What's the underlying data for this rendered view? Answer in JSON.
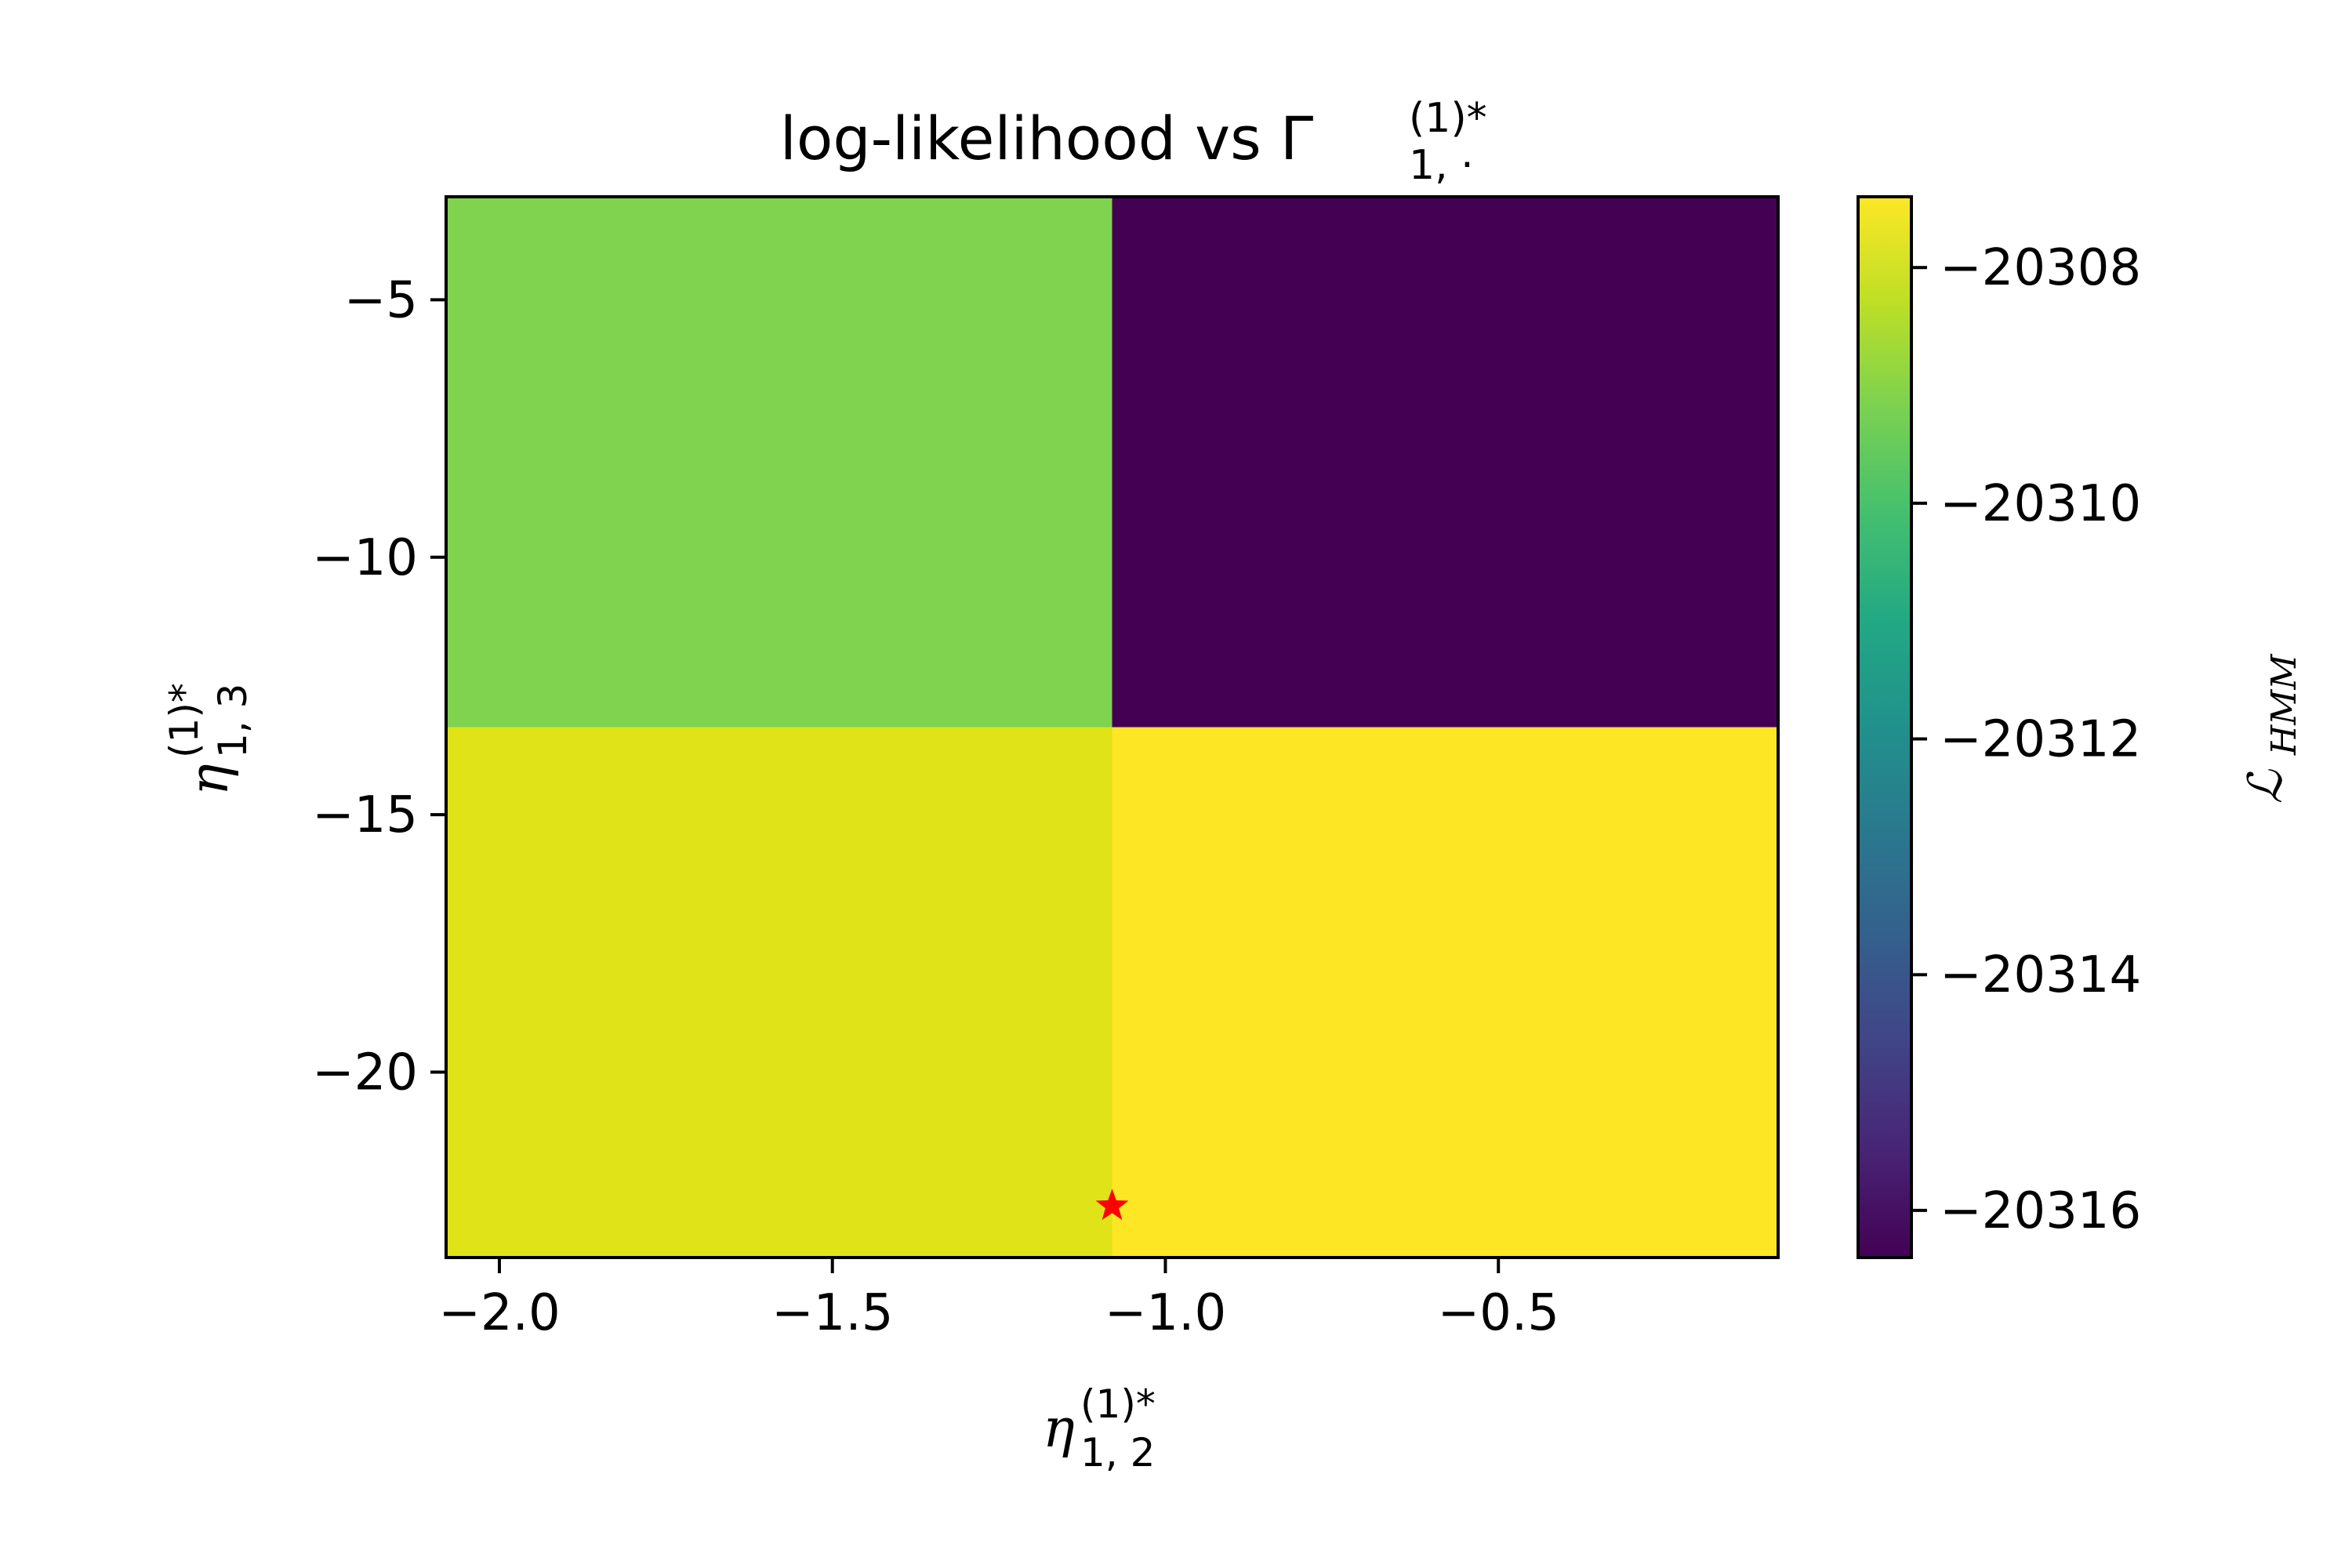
{
  "chart_data": {
    "type": "heatmap",
    "title": {
      "main": "log-likelihood vs Γ",
      "sup": "(1)*",
      "sub": "1, ·"
    },
    "xlabel": {
      "main": "η",
      "sup": "(1)*",
      "sub": "1, 2"
    },
    "ylabel": {
      "main": "η",
      "sup": "(1)*",
      "sub": "1, 3"
    },
    "colorbar_label": {
      "main": "ℒ",
      "sub": "HMM"
    },
    "x_edges": [
      -2.08,
      -1.08,
      -0.08
    ],
    "y_edges": [
      -23.6,
      -13.3,
      -3.0
    ],
    "xlim": [
      -2.08,
      -0.08
    ],
    "ylim": [
      -23.6,
      -3.0
    ],
    "x_ticks": [
      -2.0,
      -1.5,
      -1.0,
      -0.5
    ],
    "x_tick_labels": [
      "−2.0",
      "−1.5",
      "−1.0",
      "−0.5"
    ],
    "y_ticks": [
      -5,
      -10,
      -15,
      -20
    ],
    "y_tick_labels": [
      "−5",
      "−10",
      "−15",
      "−20"
    ],
    "cells": [
      {
        "x": [
          -2.08,
          -1.08
        ],
        "y": [
          -13.3,
          -3.0
        ],
        "value": -20309.5,
        "color": "#7fd34e"
      },
      {
        "x": [
          -1.08,
          -0.08
        ],
        "y": [
          -13.3,
          -3.0
        ],
        "value": -20316.3,
        "color": "#440154"
      },
      {
        "x": [
          -2.08,
          -1.08
        ],
        "y": [
          -23.6,
          -13.3
        ],
        "value": -20307.6,
        "color": "#e0e318"
      },
      {
        "x": [
          -1.08,
          -0.08
        ],
        "y": [
          -23.6,
          -13.3
        ],
        "value": -20307.3,
        "color": "#fde725"
      }
    ],
    "colorbar": {
      "vmin": -20316.4,
      "vmax": -20307.4,
      "ticks": [
        -20308,
        -20310,
        -20312,
        -20314,
        -20316
      ],
      "tick_labels": [
        "−20308",
        "−20310",
        "−20312",
        "−20314",
        "−20316"
      ],
      "colormap": "viridis"
    },
    "marker": {
      "x": -1.08,
      "y": -22.6,
      "symbol": "star",
      "color": "#ff0000"
    }
  }
}
